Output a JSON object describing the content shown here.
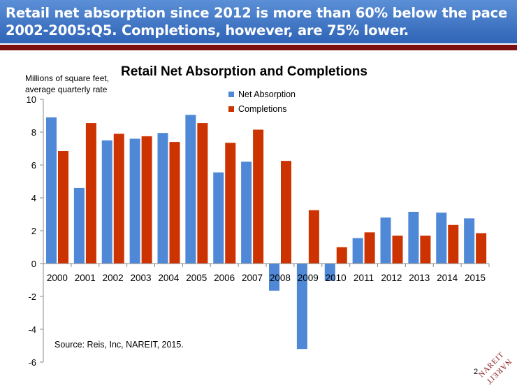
{
  "header": {
    "headline": "Retail net absorption since 2012 is more than 60% below the pace 2002-2005:Q5. Completions, however, are 75% lower."
  },
  "chart_data": {
    "type": "bar",
    "title": "Retail Net Absorption and Completions",
    "ylabel": "Millions of square feet, average quarterly rate",
    "xlabel": "",
    "categories": [
      "2000",
      "2001",
      "2002",
      "2003",
      "2004",
      "2005",
      "2006",
      "2007",
      "2008",
      "2009",
      "2010",
      "2011",
      "2012",
      "2013",
      "2014",
      "2015"
    ],
    "series": [
      {
        "name": "Net Absorption",
        "color": "#4f88d6",
        "values": [
          8.9,
          4.6,
          7.5,
          7.6,
          7.95,
          9.05,
          5.55,
          6.2,
          -1.65,
          -5.2,
          -1.05,
          1.55,
          2.8,
          3.15,
          3.1,
          2.75
        ]
      },
      {
        "name": "Completions",
        "color": "#cc3300",
        "values": [
          6.85,
          8.55,
          7.9,
          7.75,
          7.4,
          8.55,
          7.35,
          8.15,
          6.25,
          3.25,
          1.0,
          1.9,
          1.7,
          1.7,
          2.35,
          1.85
        ]
      }
    ],
    "ylim": [
      -6,
      10
    ],
    "yticks": [
      -6,
      -4,
      -2,
      0,
      2,
      4,
      6,
      8,
      10
    ],
    "grid": false,
    "legend_position": "top-center"
  },
  "footer": {
    "source": "Source: Reis, Inc, NAREIT, 2015.",
    "page_number": "2",
    "logo_text": "NAREIT"
  }
}
